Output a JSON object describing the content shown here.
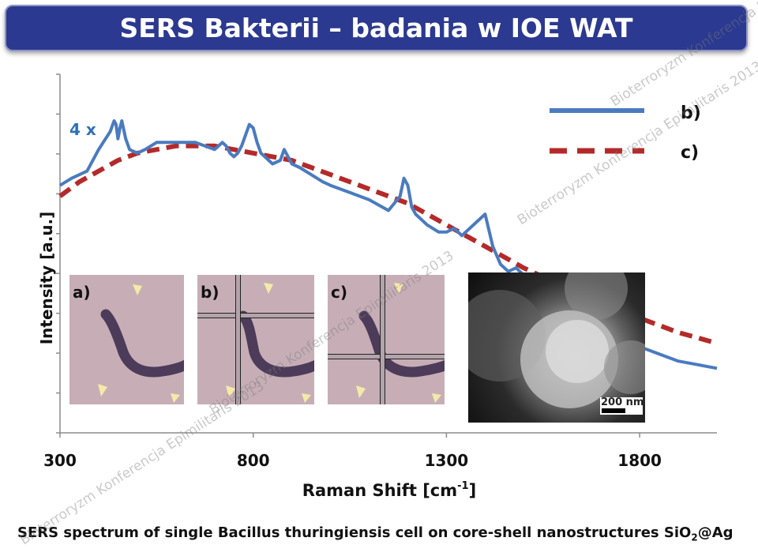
{
  "slide": {
    "title": "SERS Bakterii – badania w IOE WAT",
    "caption_main": "SERS spectrum of single Bacillus thuringiensis cell on core-shell nanostructures SiO",
    "caption_sub": "2",
    "caption_end": "@Ag",
    "watermark": "Bioterroryzm Konferencja Epimilitaris 2013"
  },
  "insets": {
    "a_label": "a)",
    "b_label": "b)",
    "c_label": "c)",
    "scale_label": "200 nm"
  },
  "colors": {
    "title_bg": "#2b3990",
    "series_b": "#4a7bbf",
    "series_c": "#b42a2a",
    "multiplier": "#2e72b5"
  },
  "chart_data": {
    "type": "line",
    "title": "",
    "xlabel": "Raman Shift [cm",
    "xlabel_sup": "-1",
    "xlabel_end": "]",
    "ylabel": "Intensity [a.u.]",
    "xlim": [
      300,
      2000
    ],
    "ylim": [
      0,
      1
    ],
    "xticks": [
      "300",
      "800",
      "1300",
      "1800"
    ],
    "xtick_values": [
      300,
      800,
      1300,
      1800
    ],
    "annotation": "4 x",
    "legend_position": "top-right",
    "grid": false,
    "series": [
      {
        "name": "b)",
        "style": "solid",
        "x": [
          300,
          330,
          370,
          400,
          430,
          440,
          445,
          450,
          455,
          460,
          470,
          480,
          500,
          520,
          550,
          600,
          650,
          700,
          720,
          730,
          740,
          750,
          760,
          770,
          780,
          790,
          800,
          810,
          820,
          830,
          850,
          870,
          880,
          890,
          900,
          920,
          950,
          980,
          1000,
          1050,
          1100,
          1150,
          1180,
          1190,
          1200,
          1210,
          1220,
          1230,
          1250,
          1280,
          1300,
          1320,
          1340,
          1360,
          1380,
          1400,
          1420,
          1440,
          1460,
          1480,
          1500,
          1530,
          1560,
          1590,
          1600,
          1610,
          1620,
          1630,
          1650,
          1700,
          1750,
          1800,
          1850,
          1900,
          1950,
          2000
        ],
        "y": [
          0.69,
          0.71,
          0.73,
          0.79,
          0.84,
          0.87,
          0.86,
          0.82,
          0.85,
          0.87,
          0.82,
          0.79,
          0.78,
          0.79,
          0.81,
          0.81,
          0.81,
          0.79,
          0.81,
          0.8,
          0.78,
          0.77,
          0.78,
          0.8,
          0.83,
          0.86,
          0.85,
          0.81,
          0.78,
          0.77,
          0.75,
          0.76,
          0.79,
          0.77,
          0.75,
          0.74,
          0.72,
          0.7,
          0.69,
          0.67,
          0.65,
          0.62,
          0.66,
          0.71,
          0.69,
          0.63,
          0.61,
          0.6,
          0.58,
          0.56,
          0.56,
          0.57,
          0.55,
          0.57,
          0.59,
          0.61,
          0.52,
          0.47,
          0.45,
          0.46,
          0.44,
          0.42,
          0.4,
          0.39,
          0.38,
          0.43,
          0.36,
          0.34,
          0.33,
          0.3,
          0.27,
          0.24,
          0.22,
          0.2,
          0.19,
          0.18
        ]
      },
      {
        "name": "c)",
        "style": "dashed",
        "x": [
          300,
          350,
          400,
          450,
          500,
          550,
          600,
          650,
          700,
          750,
          800,
          850,
          900,
          950,
          1000,
          1100,
          1200,
          1300,
          1400,
          1500,
          1600,
          1700,
          1800,
          1900,
          2000
        ],
        "y": [
          0.66,
          0.7,
          0.73,
          0.76,
          0.78,
          0.79,
          0.8,
          0.8,
          0.8,
          0.79,
          0.78,
          0.77,
          0.76,
          0.74,
          0.72,
          0.68,
          0.64,
          0.58,
          0.52,
          0.46,
          0.41,
          0.36,
          0.32,
          0.28,
          0.25
        ]
      }
    ]
  }
}
